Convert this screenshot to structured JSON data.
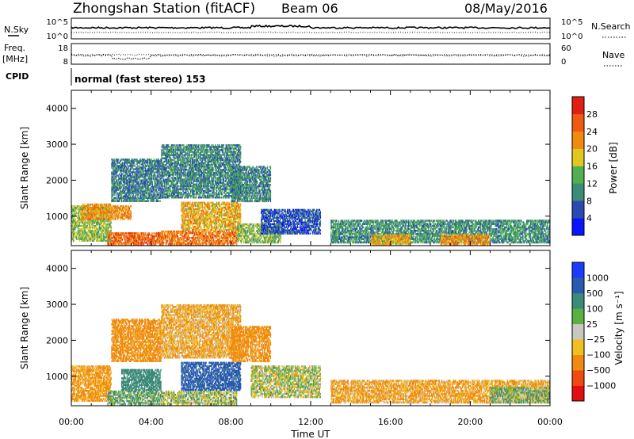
{
  "header": {
    "title": "Zhongshan Station (fitACF)",
    "beam": "Beam 06",
    "date": "08/May/2016"
  },
  "params": {
    "nsky_label": "N.Sky",
    "nsky_ticks": [
      "10^5",
      "10^0"
    ],
    "nsearch_label": "N.Search",
    "nsearch_ticks": [
      "10^5",
      "10^0"
    ],
    "freq_label_1": "Freq.",
    "freq_label_2": "[MHz]",
    "freq_ticks": [
      "18",
      "8"
    ],
    "nave_label": "Nave",
    "nave_ticks": [
      "60",
      "0"
    ],
    "cpid_label": "CPID",
    "cpid_text": "normal (fast stereo) 153"
  },
  "axes": {
    "xlabel": "Time UT",
    "xticks": [
      "00:00",
      "04:00",
      "08:00",
      "12:00",
      "16:00",
      "20:00",
      "00:00"
    ],
    "ylabel": "Slant Range [km]",
    "yticks": [
      "1000",
      "2000",
      "3000",
      "4000"
    ],
    "xlim_hours": [
      0,
      24
    ],
    "ylim_km": [
      180,
      4500
    ]
  },
  "colorbars": {
    "power": {
      "label": "Power [dB]",
      "ticks": [
        "4",
        "8",
        "12",
        "16",
        "20",
        "24",
        "28"
      ],
      "colors": [
        "#0a14ff",
        "#2a4ab0",
        "#3c8a78",
        "#50b050",
        "#e0c820",
        "#f08a10",
        "#f05a10",
        "#e02010"
      ]
    },
    "velocity": {
      "label": "Velocity [m s⁻¹]",
      "ticks": [
        "1000",
        "500",
        "100",
        "25",
        "−25",
        "−100",
        "−500",
        "−1000"
      ],
      "colors": [
        "#1a3cff",
        "#2a5ab0",
        "#3c8a78",
        "#5ab040",
        "#c8c8c0",
        "#f0c020",
        "#f08a10",
        "#f04a10",
        "#e01010"
      ]
    }
  },
  "chart_data": [
    {
      "type": "heatmap",
      "name": "Power",
      "xlabel": "Time UT",
      "ylabel": "Slant Range [km]",
      "xlim": [
        0,
        24
      ],
      "ylim": [
        180,
        4500
      ],
      "colorbar": "Power [dB]",
      "regions": [
        {
          "t0": 0.0,
          "t1": 2.0,
          "r0": 300,
          "r1": 1300,
          "p": 15
        },
        {
          "t0": 0.5,
          "t1": 2.0,
          "r0": 900,
          "r1": 1350,
          "p": 22
        },
        {
          "t0": 1.8,
          "t1": 4.6,
          "r0": 200,
          "r1": 550,
          "p": 25
        },
        {
          "t0": 2.0,
          "t1": 3.0,
          "r0": 900,
          "r1": 1300,
          "p": 22
        },
        {
          "t0": 2.0,
          "t1": 4.5,
          "r0": 1400,
          "r1": 2600,
          "p": 9
        },
        {
          "t0": 4.5,
          "t1": 8.3,
          "r0": 200,
          "r1": 600,
          "p": 24
        },
        {
          "t0": 5.5,
          "t1": 8.5,
          "r0": 600,
          "r1": 1400,
          "p": 20
        },
        {
          "t0": 4.5,
          "t1": 8.5,
          "r0": 1500,
          "r1": 3000,
          "p": 10
        },
        {
          "t0": 8.0,
          "t1": 10.0,
          "r0": 1400,
          "r1": 2400,
          "p": 10
        },
        {
          "t0": 8.3,
          "t1": 10.5,
          "r0": 250,
          "r1": 800,
          "p": 15
        },
        {
          "t0": 9.5,
          "t1": 12.5,
          "r0": 500,
          "r1": 1200,
          "p": 6
        },
        {
          "t0": 13.0,
          "t1": 24.0,
          "r0": 250,
          "r1": 900,
          "p": 11
        },
        {
          "t0": 15.0,
          "t1": 17.0,
          "r0": 200,
          "r1": 500,
          "p": 20
        },
        {
          "t0": 18.5,
          "t1": 21.0,
          "r0": 200,
          "r1": 500,
          "p": 22
        }
      ]
    },
    {
      "type": "heatmap",
      "name": "Velocity",
      "xlabel": "Time UT",
      "ylabel": "Slant Range [km]",
      "xlim": [
        0,
        24
      ],
      "ylim": [
        180,
        4500
      ],
      "colorbar": "Velocity [m s⁻¹]",
      "regions": [
        {
          "t0": 0.0,
          "t1": 2.0,
          "r0": 300,
          "r1": 1300,
          "v": -150
        },
        {
          "t0": 1.8,
          "t1": 4.6,
          "r0": 200,
          "r1": 600,
          "v": 80
        },
        {
          "t0": 2.5,
          "t1": 4.5,
          "r0": 600,
          "r1": 1200,
          "v": 300
        },
        {
          "t0": 2.0,
          "t1": 4.5,
          "r0": 1400,
          "r1": 2600,
          "v": -200
        },
        {
          "t0": 4.5,
          "t1": 8.3,
          "r0": 200,
          "r1": 600,
          "v": 20
        },
        {
          "t0": 5.5,
          "t1": 8.5,
          "r0": 600,
          "r1": 1400,
          "v": 600
        },
        {
          "t0": 4.5,
          "t1": 8.5,
          "r0": 1500,
          "r1": 3000,
          "v": -100
        },
        {
          "t0": 8.0,
          "t1": 10.0,
          "r0": 1400,
          "r1": 2400,
          "v": -200
        },
        {
          "t0": 9.0,
          "t1": 12.5,
          "r0": 400,
          "r1": 1300,
          "v": 5
        },
        {
          "t0": 13.0,
          "t1": 24.0,
          "r0": 250,
          "r1": 900,
          "v": -120
        },
        {
          "t0": 21.0,
          "t1": 24.0,
          "r0": 250,
          "r1": 700,
          "v": 60
        }
      ]
    }
  ]
}
